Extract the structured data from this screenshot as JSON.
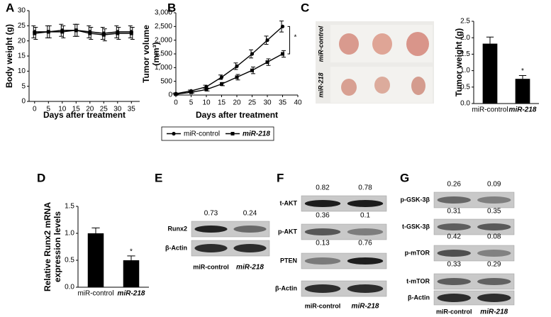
{
  "panel_labels": [
    "A",
    "B",
    "C",
    "D",
    "E",
    "F",
    "G"
  ],
  "chart_data": [
    {
      "type": "line",
      "xlabel": "Days after treatment",
      "ylabel": [
        "Body weight (g)"
      ],
      "x": [
        0,
        5,
        10,
        15,
        20,
        25,
        30,
        35
      ],
      "xlim": [
        -2,
        38
      ],
      "xticks": [
        0,
        5,
        10,
        15,
        20,
        25,
        30,
        35
      ],
      "ylim": [
        0,
        30
      ],
      "yticks": [
        0,
        5,
        10,
        15,
        20,
        25,
        30
      ],
      "series": [
        {
          "name": "miR-control",
          "color": "#000000",
          "marker": "circle",
          "values": [
            23,
            23,
            23.5,
            23.5,
            23,
            22.5,
            23,
            23
          ],
          "errors": [
            2,
            2,
            2,
            2,
            2,
            2,
            2,
            2
          ]
        },
        {
          "name": "miR-218",
          "color": "#000000",
          "marker": "square",
          "values": [
            22.5,
            23,
            23,
            23.5,
            22.5,
            22,
            22.5,
            22.5
          ],
          "errors": [
            2,
            2,
            2,
            2,
            2,
            2,
            2,
            2
          ]
        }
      ]
    },
    {
      "type": "line",
      "xlabel": "Days after treatment",
      "ylabel": [
        "Tumor volume",
        "(mm³)"
      ],
      "x": [
        0,
        5,
        10,
        15,
        20,
        25,
        30,
        35
      ],
      "xlim": [
        0,
        40
      ],
      "xticks": [
        0,
        5,
        10,
        15,
        20,
        25,
        30,
        35,
        40
      ],
      "ylim": [
        0,
        3000
      ],
      "yticks": [
        0,
        500,
        {
          "value": 1000,
          "label": "1,000"
        },
        {
          "value": 1500,
          "label": "1,500"
        },
        {
          "value": 2000,
          "label": "2,000"
        },
        {
          "value": 2500,
          "label": "2,500"
        },
        {
          "value": 3000,
          "label": "3,000"
        }
      ],
      "annotation": "*",
      "series": [
        {
          "name": "miR-control",
          "color": "#000000",
          "marker": "circle",
          "values": [
            50,
            150,
            300,
            650,
            1050,
            1500,
            2000,
            2500
          ],
          "errors": [
            20,
            30,
            60,
            80,
            120,
            150,
            150,
            200
          ]
        },
        {
          "name": "miR-218",
          "color": "#000000",
          "marker": "square",
          "values": [
            30,
            100,
            200,
            400,
            650,
            900,
            1200,
            1500
          ],
          "errors": [
            20,
            30,
            50,
            60,
            100,
            120,
            120,
            120
          ]
        }
      ]
    },
    {
      "type": "bar",
      "ylabel": [
        "Tumor weight (g)"
      ],
      "categories": [
        "miR-control",
        "miR-218"
      ],
      "values": [
        1.82,
        0.75
      ],
      "errors": [
        0.2,
        0.1
      ],
      "color": "#000000",
      "annotation": "*",
      "ylim": [
        0,
        2.5
      ],
      "yticks": [
        {
          "value": 0,
          "label": "0.0"
        },
        0.5,
        {
          "value": 1,
          "label": "1.0"
        },
        1.5,
        {
          "value": 2,
          "label": "2.0"
        },
        2.5
      ]
    },
    {
      "type": "bar",
      "ylabel": [
        "Relative Runx2 mRNA",
        "expression levels"
      ],
      "categories": [
        "miR-control",
        "miR-218"
      ],
      "values": [
        1.0,
        0.5
      ],
      "errors": [
        0.1,
        0.08
      ],
      "color": "#000000",
      "annotation": "*",
      "ylim": [
        0,
        1.5
      ],
      "yticks": [
        {
          "value": 0,
          "label": "0.0"
        },
        0.5,
        {
          "value": 1,
          "label": "1.0"
        },
        1.5
      ]
    }
  ],
  "photo": {
    "row_labels": [
      "miR-control",
      "miR-218"
    ]
  },
  "blots": [
    {
      "columns": [
        "miR-control",
        "miR-218"
      ],
      "rows": [
        {
          "label": "Runx2",
          "values": [
            0.73,
            0.24
          ]
        },
        {
          "label": "β-Actin"
        }
      ]
    },
    {
      "columns": [
        "miR-control",
        "miR-218"
      ],
      "rows": [
        {
          "label": "t-AKT",
          "values": [
            0.82,
            0.78
          ]
        },
        {
          "label": "p-AKT",
          "values": [
            0.36,
            0.1
          ]
        },
        {
          "label": "PTEN",
          "values": [
            0.13,
            0.76
          ]
        },
        {
          "label": "β-Actin"
        }
      ]
    },
    {
      "columns": [
        "miR-control",
        "miR-218"
      ],
      "rows": [
        {
          "label": "p-GSK-3β",
          "values": [
            0.26,
            0.09
          ]
        },
        {
          "label": "t-GSK-3β",
          "values": [
            0.31,
            0.35
          ]
        },
        {
          "label": "p-mTOR",
          "values": [
            0.42,
            0.08
          ]
        },
        {
          "label": "t-mTOR",
          "values": [
            0.33,
            0.29
          ]
        },
        {
          "label": "β-Actin"
        }
      ]
    }
  ]
}
